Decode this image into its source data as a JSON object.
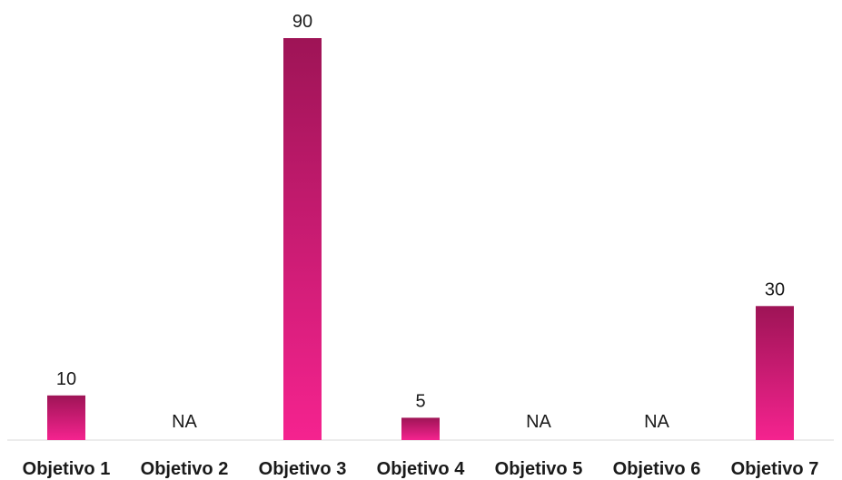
{
  "chart_data": {
    "type": "bar",
    "categories": [
      "Objetivo 1",
      "Objetivo 2",
      "Objetivo 3",
      "Objetivo 4",
      "Objetivo 5",
      "Objetivo 6",
      "Objetivo 7"
    ],
    "values": [
      10,
      null,
      90,
      5,
      null,
      null,
      30
    ],
    "data_labels": [
      "10",
      "NA",
      "90",
      "5",
      "NA",
      "NA",
      "30"
    ],
    "title": "",
    "xlabel": "",
    "ylabel": "",
    "ylim": [
      0,
      90
    ],
    "grid": false,
    "legend": "none",
    "colors": {
      "bar_top": "#9e1456",
      "bar_bottom": "#f5238f",
      "baseline": "#d9d9d9"
    }
  }
}
